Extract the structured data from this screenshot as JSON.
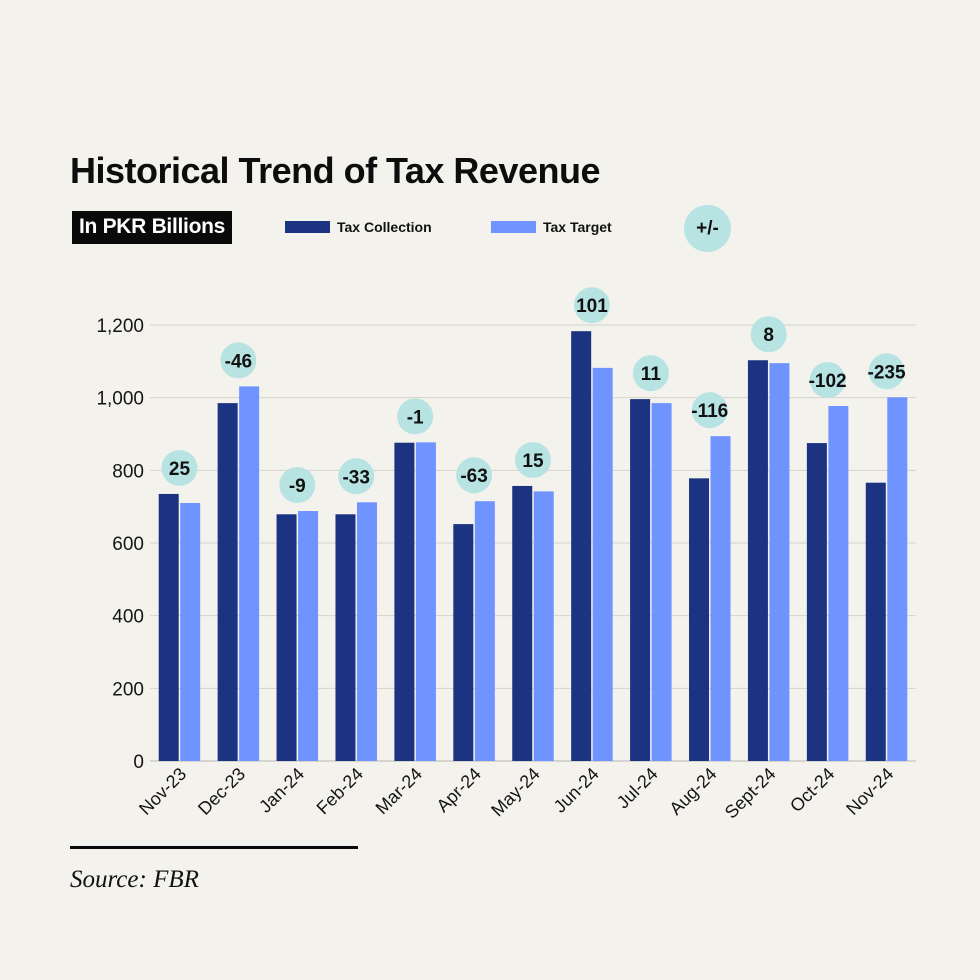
{
  "header": {
    "title": "Historical Trend of Tax Revenue",
    "unit_label": "In PKR Billions"
  },
  "legend": {
    "collection_label": "Tax Collection",
    "target_label": "Tax Target",
    "difference_label": "+/-"
  },
  "colors": {
    "background": "#f4f2ec",
    "collection": "#1b3380",
    "target": "#7094ff",
    "difference_bubble": "#b7e4e3",
    "gridline": "#d5d3cd"
  },
  "source": "Source: FBR",
  "chart_data": {
    "type": "bar",
    "title": "Historical Trend of Tax Revenue",
    "subtitle": "In PKR Billions",
    "xlabel": "",
    "ylabel": "",
    "ylim": [
      0,
      1200
    ],
    "yticks": [
      0,
      200,
      400,
      600,
      800,
      1000,
      1200
    ],
    "ytick_labels": [
      "0",
      "200",
      "400",
      "600",
      "800",
      "1,000",
      "1,200"
    ],
    "grid": true,
    "legend_position": "top",
    "categories": [
      "Nov-23",
      "Dec-23",
      "Jan-24",
      "Feb-24",
      "Mar-24",
      "Apr-24",
      "May-24",
      "Jun-24",
      "Jul-24",
      "Aug-24",
      "Sept-24",
      "Oct-24",
      "Nov-24"
    ],
    "series": [
      {
        "name": "Tax Collection",
        "values": [
          735,
          985,
          679,
          679,
          876,
          652,
          757,
          1183,
          996,
          778,
          1103,
          875,
          766
        ]
      },
      {
        "name": "Tax Target",
        "values": [
          710,
          1031,
          688,
          712,
          877,
          715,
          742,
          1082,
          985,
          894,
          1095,
          977,
          1001
        ]
      }
    ],
    "annotations": {
      "name": "+/-",
      "values": [
        "25",
        "-46",
        "-9",
        "-33",
        "-1",
        "-63",
        "15",
        "101",
        "11",
        "-116",
        "8",
        "-102",
        "-235"
      ]
    }
  }
}
